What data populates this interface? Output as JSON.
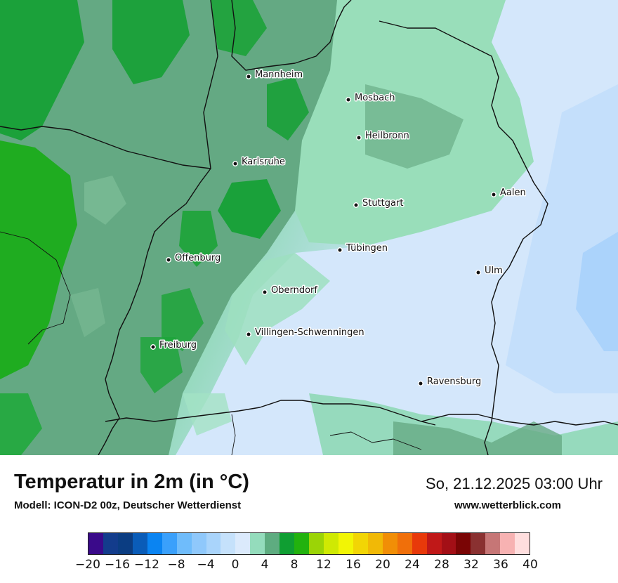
{
  "title": "Temperatur in 2m (in °C)",
  "subtitle": "Modell: ICON-D2 00z, Deutscher Wetterdienst",
  "datetime": "So, 21.12.2025 03:00 Uhr",
  "website": "www.wetterblick.com",
  "cities": [
    {
      "name": "Mannheim"
    },
    {
      "name": "Mosbach"
    },
    {
      "name": "Heilbronn"
    },
    {
      "name": "Karlsruhe"
    },
    {
      "name": "Aalen"
    },
    {
      "name": "Stuttgart"
    },
    {
      "name": "Tübingen"
    },
    {
      "name": "Offenburg"
    },
    {
      "name": "Ulm"
    },
    {
      "name": "Oberndorf"
    },
    {
      "name": "Villingen-Schwenningen"
    },
    {
      "name": "Freiburg"
    },
    {
      "name": "Ravensburg"
    }
  ],
  "legend": {
    "colors": [
      "#3a0a8a",
      "#133c8c",
      "#0b3d82",
      "#0a5cb8",
      "#0a84f2",
      "#3aa0fb",
      "#6fbcfb",
      "#8fc8fb",
      "#a9d4fb",
      "#c5e1fb",
      "#dbeafc",
      "#94dcbc",
      "#5eac80",
      "#0f9e32",
      "#22b20e",
      "#9bd406",
      "#cfe903",
      "#f2f505",
      "#f2d505",
      "#f1b906",
      "#f18e06",
      "#f06f0a",
      "#e8390a",
      "#c01818",
      "#a30f16",
      "#7a0505",
      "#8a3131",
      "#c67676",
      "#f7b2b2",
      "#ffdede"
    ],
    "ticks": [
      "−20",
      "−16",
      "−12",
      "−8",
      "−4",
      "0",
      "4",
      "8",
      "12",
      "16",
      "20",
      "24",
      "28",
      "32",
      "36",
      "40"
    ]
  }
}
